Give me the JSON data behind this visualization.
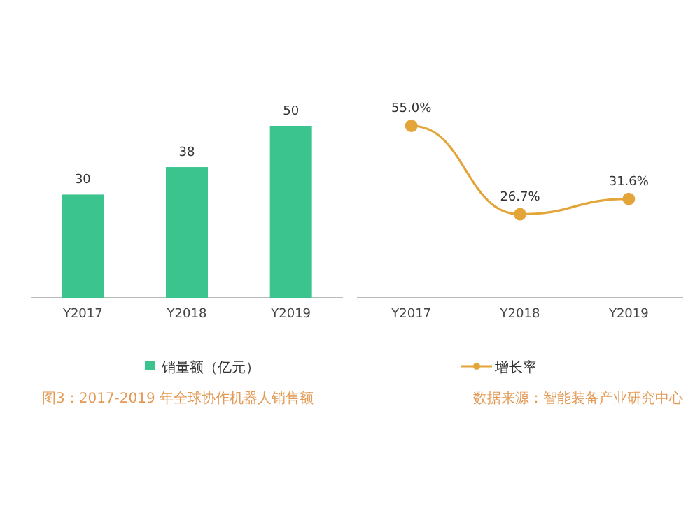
{
  "chart_data": [
    {
      "type": "bar",
      "categories": [
        "Y2017",
        "Y2018",
        "Y2019"
      ],
      "series": [
        {
          "name": "销量额（亿元）",
          "color": "#3cc48e",
          "values": [
            30,
            38,
            50
          ]
        }
      ],
      "data_labels": true,
      "legend": "bottom",
      "annotations": [
        "图3：2017-2019 年全球协作机器人销售额"
      ]
    },
    {
      "type": "line",
      "categories": [
        "Y2017",
        "Y2018",
        "Y2019"
      ],
      "series": [
        {
          "name": "增长率",
          "color": "#e3a53a",
          "values": [
            55.0,
            26.7,
            31.6
          ],
          "value_labels": [
            "55.0%",
            "26.7%",
            "31.6%"
          ]
        }
      ],
      "marker": "circle",
      "legend": "bottom",
      "annotations": [
        "数据来源：智能装备产业研究中心"
      ]
    }
  ]
}
